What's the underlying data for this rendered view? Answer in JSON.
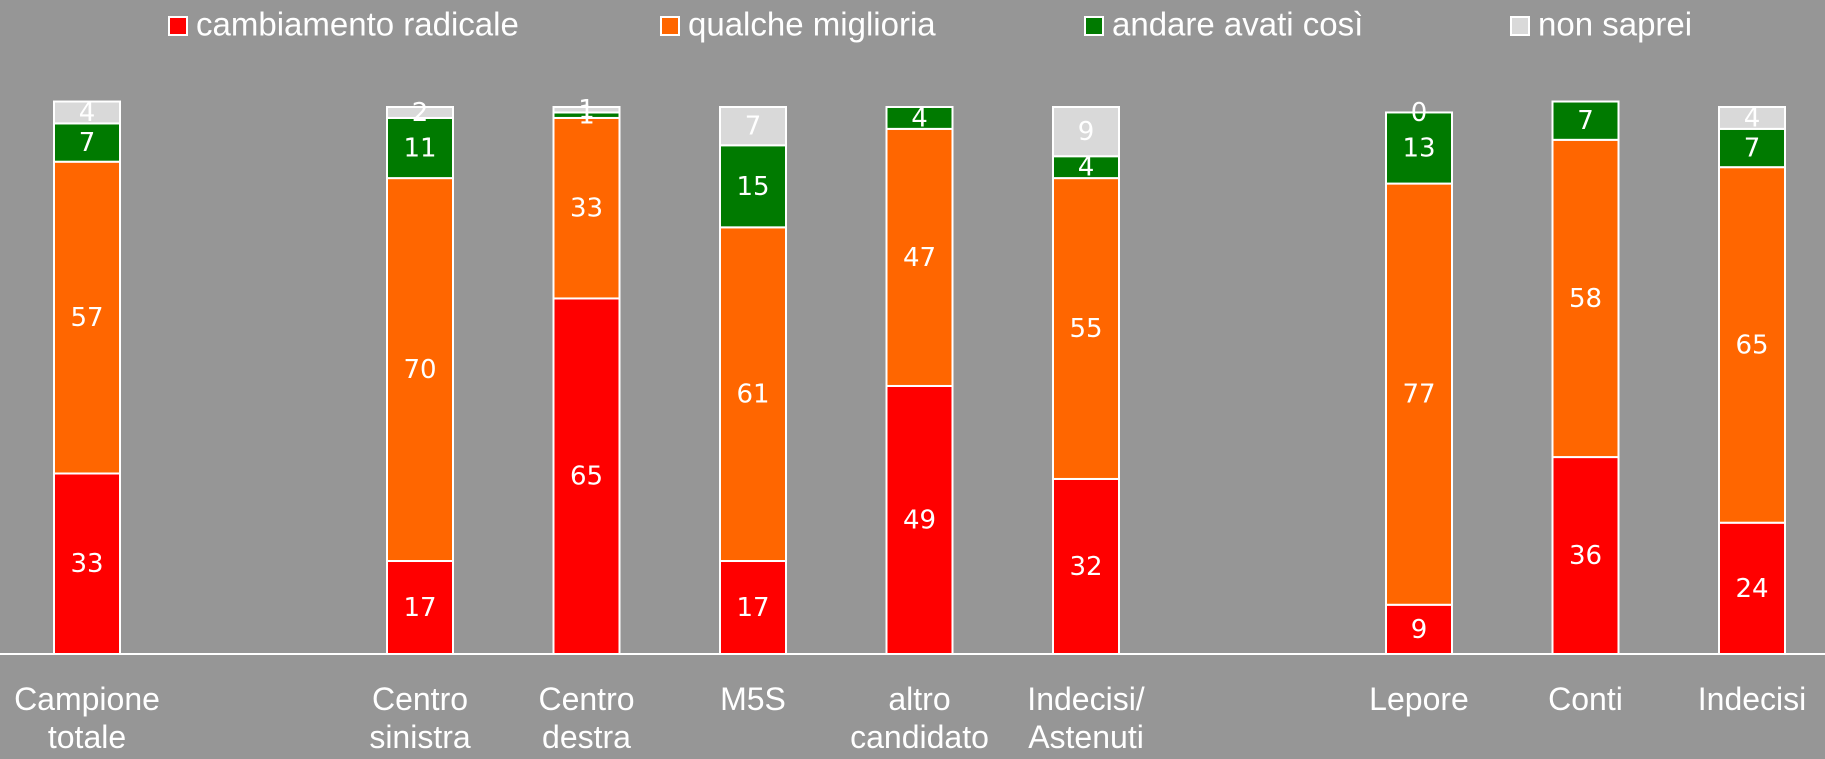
{
  "chart_data": {
    "type": "stacked_bar",
    "categories": [
      "Campione totale",
      "Centro sinistra",
      "Centro destra",
      "M5S",
      "altro candidato",
      "Indecisi/ Astenuti",
      "Lepore",
      "Conti",
      "Indecisi"
    ],
    "series": [
      {
        "name": "cambiamento radicale",
        "color": "#ff0000",
        "values": [
          33,
          17,
          65,
          17,
          49,
          32,
          9,
          36,
          24
        ]
      },
      {
        "name": "qualche miglioria",
        "color": "#ff6600",
        "values": [
          57,
          70,
          33,
          61,
          47,
          55,
          77,
          58,
          65
        ]
      },
      {
        "name": "andare avati così",
        "color": "#007a00",
        "values": [
          7,
          11,
          1,
          15,
          4,
          4,
          13,
          7,
          7
        ]
      },
      {
        "name": "non saprei",
        "color": "#d9d9d9",
        "values": [
          4,
          2,
          1,
          7,
          null,
          9,
          0,
          null,
          4
        ]
      }
    ],
    "ylim": [
      0,
      100
    ]
  }
}
